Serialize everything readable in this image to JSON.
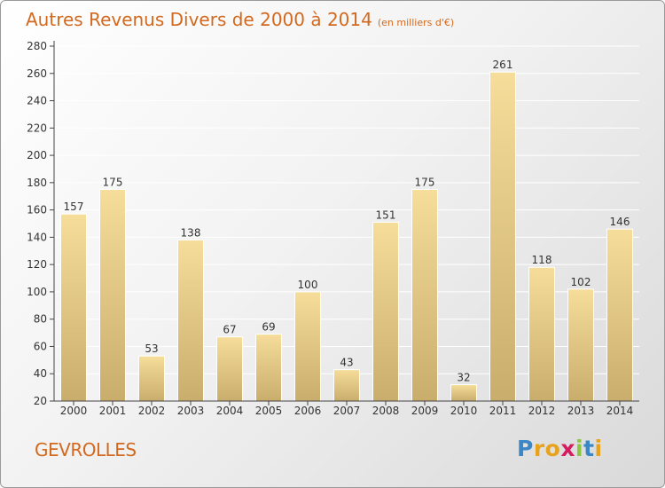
{
  "header": {
    "title": "Autres Revenus Divers de 2000 à 2014",
    "subtitle": "(en milliers d'€)"
  },
  "footer": {
    "place": "GEVROLLES",
    "logo_letters": [
      {
        "ch": "P",
        "color": "#3a87c8"
      },
      {
        "ch": "r",
        "color": "#e8a21c"
      },
      {
        "ch": "o",
        "color": "#e8a21c"
      },
      {
        "ch": "x",
        "color": "#d81b60"
      },
      {
        "ch": "i",
        "color": "#8cc63f"
      },
      {
        "ch": "t",
        "color": "#3a87c8"
      },
      {
        "ch": "i",
        "color": "#e8a21c"
      }
    ]
  },
  "chart_data": {
    "type": "bar",
    "title": "Autres Revenus Divers de 2000 à 2014",
    "subtitle": "(en milliers d'€)",
    "categories": [
      "2000",
      "2001",
      "2002",
      "2003",
      "2004",
      "2005",
      "2006",
      "2007",
      "2008",
      "2009",
      "2010",
      "2011",
      "2012",
      "2013",
      "2014"
    ],
    "values": [
      157,
      175,
      53,
      138,
      67,
      69,
      100,
      43,
      151,
      175,
      32,
      261,
      118,
      102,
      146
    ],
    "ylim": [
      20,
      280
    ],
    "yticks": [
      20,
      40,
      60,
      80,
      100,
      120,
      140,
      160,
      180,
      200,
      220,
      240,
      260,
      280
    ],
    "grid": true,
    "bar_color": "#ecd08c",
    "grid_color": "#ffffff"
  }
}
